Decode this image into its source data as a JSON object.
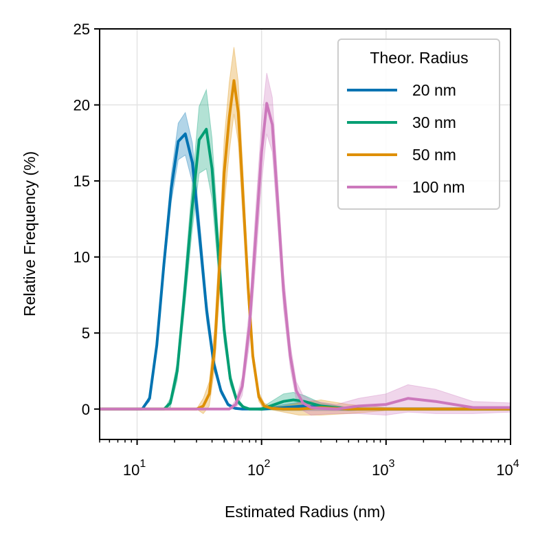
{
  "chart_data": {
    "type": "line",
    "title": "",
    "xlabel": "Estimated Radius (nm)",
    "ylabel": "Relative Frequency (%)",
    "xscale": "log",
    "xlim": [
      5,
      10000
    ],
    "ylim": [
      -2,
      25
    ],
    "yticks": [
      0,
      5,
      10,
      15,
      20,
      25
    ],
    "xticks": [
      10,
      100,
      1000,
      10000
    ],
    "xtick_labels": [
      {
        "base": "10",
        "exp": "1"
      },
      {
        "base": "10",
        "exp": "2"
      },
      {
        "base": "10",
        "exp": "3"
      },
      {
        "base": "10",
        "exp": "4"
      }
    ],
    "grid": true,
    "legend": {
      "title": "Theor. Radius",
      "position": "top-right"
    },
    "series": [
      {
        "name": "20 nm",
        "color": "#0173b2",
        "x": [
          5,
          11,
          12.6,
          14.4,
          16.4,
          18.8,
          21.4,
          24.4,
          27.8,
          31.7,
          36.2,
          41.3,
          47.1,
          53.7,
          61.3,
          70,
          100,
          150,
          220,
          300,
          500,
          1000,
          3000,
          10000
        ],
        "y": [
          0,
          0,
          0.7,
          4.2,
          9.5,
          14.5,
          17.6,
          18.1,
          16.2,
          11.5,
          6.5,
          3.0,
          1.2,
          0.3,
          0.05,
          0,
          0,
          0.1,
          0.2,
          0.1,
          0,
          0,
          0,
          0
        ],
        "band": [
          0,
          0,
          0.2,
          0.4,
          0.6,
          0.9,
          1.2,
          1.4,
          1.3,
          1.0,
          0.7,
          0.4,
          0.2,
          0.1,
          0.05,
          0,
          0,
          0.2,
          0.3,
          0.2,
          0.1,
          0,
          0,
          0
        ]
      },
      {
        "name": "30 nm",
        "color": "#029e73",
        "x": [
          5,
          16.5,
          18.5,
          21,
          24,
          27.5,
          31.5,
          36,
          40,
          45,
          50,
          56,
          63,
          71,
          80,
          100,
          150,
          180,
          220,
          300,
          500,
          1000,
          3000,
          10000
        ],
        "y": [
          0,
          0,
          0.4,
          2.5,
          7.5,
          13.0,
          17.7,
          18.4,
          15.8,
          10.2,
          5.2,
          2.0,
          0.6,
          0.15,
          0,
          0,
          0.5,
          0.6,
          0.5,
          0.2,
          0,
          0,
          0,
          0
        ],
        "band": [
          0,
          0,
          0.3,
          0.6,
          1.0,
          1.5,
          2.2,
          2.6,
          2.0,
          1.3,
          0.8,
          0.4,
          0.2,
          0.1,
          0,
          0.1,
          0.5,
          0.5,
          0.4,
          0.2,
          0.1,
          0,
          0,
          0
        ]
      },
      {
        "name": "50 nm",
        "color": "#de8f05",
        "x": [
          5,
          30,
          34,
          38,
          42,
          46,
          50,
          55,
          60,
          65,
          71,
          78,
          85,
          95,
          105,
          120,
          150,
          200,
          300,
          500,
          1000,
          3000,
          10000
        ],
        "y": [
          0,
          0,
          0.2,
          1.0,
          4.0,
          9.5,
          15.5,
          19.2,
          21.6,
          19.5,
          14.0,
          8.0,
          3.5,
          0.8,
          0.2,
          0.05,
          0,
          0,
          0.1,
          0,
          0,
          0,
          0
        ],
        "band": [
          0,
          0,
          0.5,
          0.8,
          1.3,
          1.8,
          2.2,
          2.3,
          2.2,
          2.0,
          1.6,
          1.0,
          0.5,
          0.3,
          0.2,
          0.1,
          0.2,
          0.4,
          0.5,
          0.3,
          0.1,
          0.1,
          0.1
        ]
      },
      {
        "name": "100 nm",
        "color": "#cc78bc",
        "x": [
          5,
          55,
          62,
          70,
          80,
          90,
          100,
          110,
          122,
          135,
          150,
          170,
          190,
          215,
          250,
          300,
          400,
          600,
          1000,
          1500,
          2500,
          5000,
          10000
        ],
        "y": [
          0,
          0,
          0.3,
          1.5,
          5.5,
          11.5,
          16.9,
          20.1,
          18.7,
          13.5,
          7.8,
          3.5,
          1.2,
          0.4,
          0.1,
          0.05,
          0,
          0.2,
          0.3,
          0.7,
          0.5,
          0.1,
          0.1
        ],
        "band": [
          0,
          0,
          0.3,
          0.6,
          1.2,
          1.8,
          2.0,
          2.0,
          1.8,
          1.5,
          1.2,
          0.8,
          0.6,
          0.5,
          0.5,
          0.4,
          0.3,
          0.5,
          0.7,
          0.9,
          0.8,
          0.4,
          0.3
        ]
      }
    ]
  }
}
